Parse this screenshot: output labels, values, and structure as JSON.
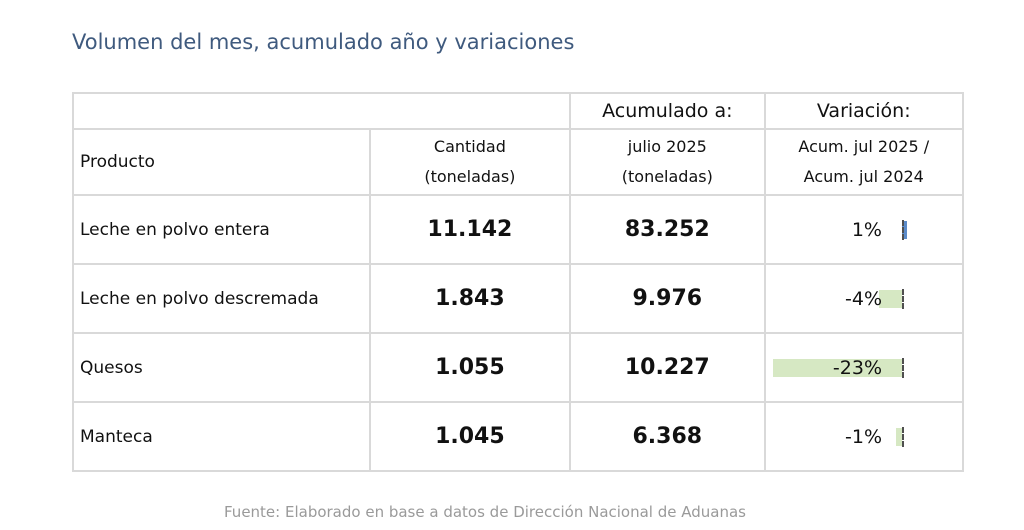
{
  "title": "Volumen del mes, acumulado año y variaciones",
  "header": {
    "acumulado_top": "Acumulado a:",
    "variacion_top": "Variación:",
    "producto": "Producto",
    "cantidad_line1": "Cantidad",
    "cantidad_line2": "(toneladas)",
    "acumulado_line1": "julio 2025",
    "acumulado_line2": "(toneladas)",
    "variacion_line1": "Acum. jul 2025 /",
    "variacion_line2": "Acum. jul 2024"
  },
  "rows": [
    {
      "producto": "Leche en polvo entera",
      "cantidad": "11.142",
      "acumulado": "83.252",
      "variacion": "1%",
      "variacion_value": 1
    },
    {
      "producto": "Leche en polvo descremada",
      "cantidad": "1.843",
      "acumulado": "9.976",
      "variacion": "-4%",
      "variacion_value": -4
    },
    {
      "producto": "Quesos",
      "cantidad": "1.055",
      "acumulado": "10.227",
      "variacion": "-23%",
      "variacion_value": -23
    },
    {
      "producto": "Manteca",
      "cantidad": "1.045",
      "acumulado": "6.368",
      "variacion": "-1%",
      "variacion_value": -1
    }
  ],
  "colors": {
    "title": "#3f5a7e",
    "cantidad": "#8bc34a",
    "acumulado": "#3d6497",
    "negative_bar": "#d6e8c3",
    "positive_bar": "#5b8bc9"
  },
  "source": "Fuente: Elaborado en base a datos de Dirección Nacional de Aduanas"
}
